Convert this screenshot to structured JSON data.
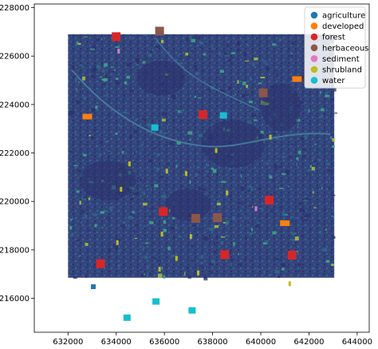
{
  "chart_data": {
    "type": "scatter",
    "title": "",
    "xlabel": "",
    "ylabel": "",
    "xlim": [
      630600,
      644500
    ],
    "ylim": [
      214600,
      228150
    ],
    "grid": false,
    "legend_position": "top-right",
    "x_ticks": [
      632000,
      634000,
      636000,
      638000,
      640000,
      642000,
      644000
    ],
    "x_tick_labels": [
      "632000",
      "634000",
      "636000",
      "638000",
      "640000",
      "642000",
      "644000"
    ],
    "y_ticks": [
      216000,
      218000,
      220000,
      222000,
      224000,
      226000,
      228000
    ],
    "y_tick_labels": [
      "216000",
      "218000",
      "220000",
      "222000",
      "224000",
      "226000",
      "228000"
    ],
    "raster_extent": {
      "x": [
        632000,
        643050
      ],
      "y": [
        216850,
        226900
      ]
    },
    "raster_colors": {
      "background": "#34457e",
      "dark": "#2c2f6a",
      "mid": "#2f6d8a",
      "bright": "#3fb58a",
      "highlight": "#b9d634"
    },
    "series": [
      {
        "name": "agriculture",
        "color": "#1f77b4",
        "points": [
          {
            "x": 633050,
            "y": 216480
          }
        ]
      },
      {
        "name": "developed",
        "color": "#ff7f0e",
        "points": [
          {
            "x": 632800,
            "y": 223500
          },
          {
            "x": 641500,
            "y": 225050
          },
          {
            "x": 641000,
            "y": 219100
          }
        ]
      },
      {
        "name": "forest",
        "color": "#d62728",
        "points": [
          {
            "x": 634000,
            "y": 226800
          },
          {
            "x": 637600,
            "y": 223580
          },
          {
            "x": 635950,
            "y": 219580
          },
          {
            "x": 640350,
            "y": 220050
          },
          {
            "x": 633350,
            "y": 217430
          },
          {
            "x": 638500,
            "y": 217800
          },
          {
            "x": 641300,
            "y": 217780
          }
        ]
      },
      {
        "name": "herbaceous",
        "color": "#8c564b",
        "points": [
          {
            "x": 635800,
            "y": 227030
          },
          {
            "x": 640100,
            "y": 224480
          },
          {
            "x": 637300,
            "y": 219300
          },
          {
            "x": 638200,
            "y": 219330
          }
        ]
      },
      {
        "name": "sediment",
        "color": "#e377c2",
        "points": [
          {
            "x": 634100,
            "y": 226200
          },
          {
            "x": 639800,
            "y": 219700
          }
        ]
      },
      {
        "name": "shrubland",
        "color": "#bcbd22",
        "points": [
          {
            "x": 634550,
            "y": 221550
          },
          {
            "x": 636100,
            "y": 221250
          },
          {
            "x": 638150,
            "y": 222100
          },
          {
            "x": 634200,
            "y": 220500
          },
          {
            "x": 636900,
            "y": 221150
          },
          {
            "x": 635900,
            "y": 218650
          },
          {
            "x": 634050,
            "y": 218300
          },
          {
            "x": 638600,
            "y": 220350
          },
          {
            "x": 640400,
            "y": 222650
          },
          {
            "x": 637100,
            "y": 218550
          },
          {
            "x": 635800,
            "y": 217200
          },
          {
            "x": 636500,
            "y": 217650
          },
          {
            "x": 637400,
            "y": 217050
          },
          {
            "x": 641200,
            "y": 216600
          }
        ]
      },
      {
        "name": "water",
        "color": "#17becf",
        "points": [
          {
            "x": 635600,
            "y": 223050
          },
          {
            "x": 638450,
            "y": 223550
          },
          {
            "x": 635650,
            "y": 215870
          },
          {
            "x": 637150,
            "y": 215500
          },
          {
            "x": 634450,
            "y": 215200
          }
        ]
      }
    ]
  }
}
